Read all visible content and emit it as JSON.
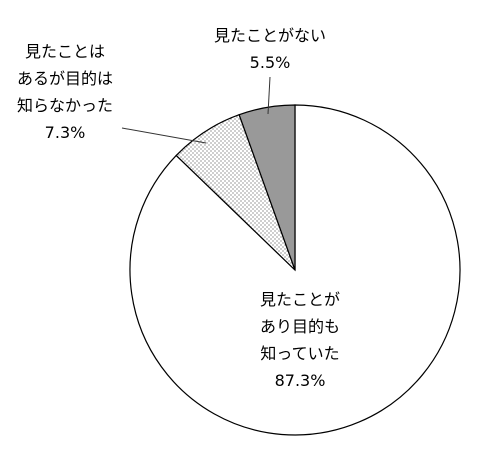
{
  "chart_data": {
    "type": "pie",
    "categories": [
      "見たことが\nあり目的も\n知っていた",
      "見たことは\nあるが目的は\n知らなかった",
      "見たことがない"
    ],
    "values": [
      87.3,
      7.3,
      5.5
    ],
    "value_labels": [
      "87.3%",
      "7.3%",
      "5.5%"
    ],
    "colors": [
      "#ffffff",
      "dots",
      "#999999"
    ]
  }
}
